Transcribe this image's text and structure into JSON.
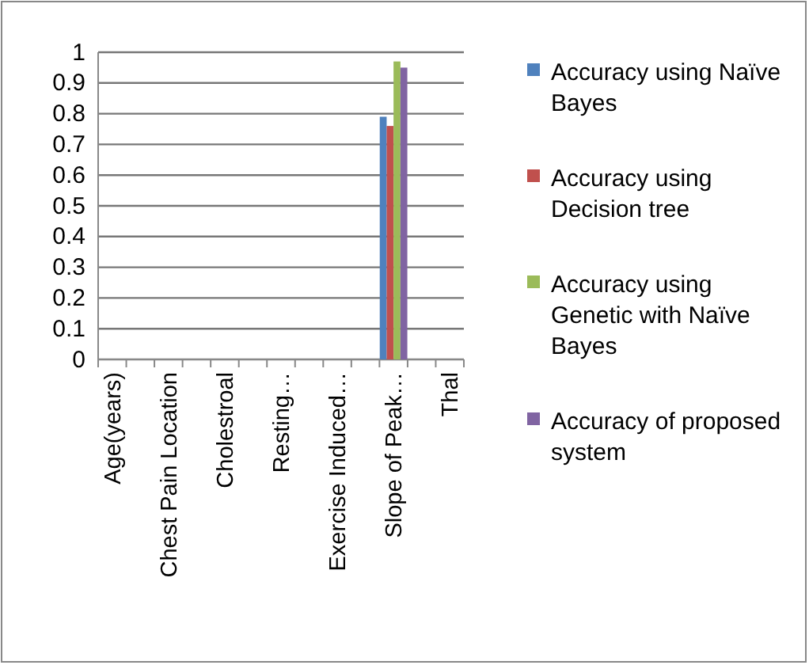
{
  "chart_data": {
    "type": "bar",
    "categories": [
      "Age(years)",
      null,
      "Chest Pain Location",
      null,
      "Cholestroal",
      null,
      "Resting…",
      null,
      "Exercise Induced…",
      null,
      "Slope of Peak…",
      null,
      "Thal"
    ],
    "series": [
      {
        "name": "Accuracy using Naïve Bayes",
        "color": "#4f81bd",
        "values": [
          null,
          null,
          null,
          null,
          null,
          null,
          null,
          null,
          null,
          null,
          0.79,
          null,
          null
        ]
      },
      {
        "name": "Accuracy using Decision tree",
        "color": "#c0504d",
        "values": [
          null,
          null,
          null,
          null,
          null,
          null,
          null,
          null,
          null,
          null,
          0.76,
          null,
          null
        ]
      },
      {
        "name": "Accuracy using Genetic with Naïve Bayes",
        "color": "#9bbb59",
        "values": [
          null,
          null,
          null,
          null,
          null,
          null,
          null,
          null,
          null,
          null,
          0.97,
          null,
          null
        ]
      },
      {
        "name": "Accuracy of proposed system",
        "color": "#8064a2",
        "values": [
          null,
          null,
          null,
          null,
          null,
          null,
          null,
          null,
          null,
          null,
          0.95,
          null,
          null
        ]
      }
    ],
    "ylim": [
      0,
      1
    ],
    "yticks": [
      0,
      0.1,
      0.2,
      0.3,
      0.4,
      0.5,
      0.6,
      0.7,
      0.8,
      0.9,
      1
    ],
    "grid": "y",
    "legend": "right"
  }
}
